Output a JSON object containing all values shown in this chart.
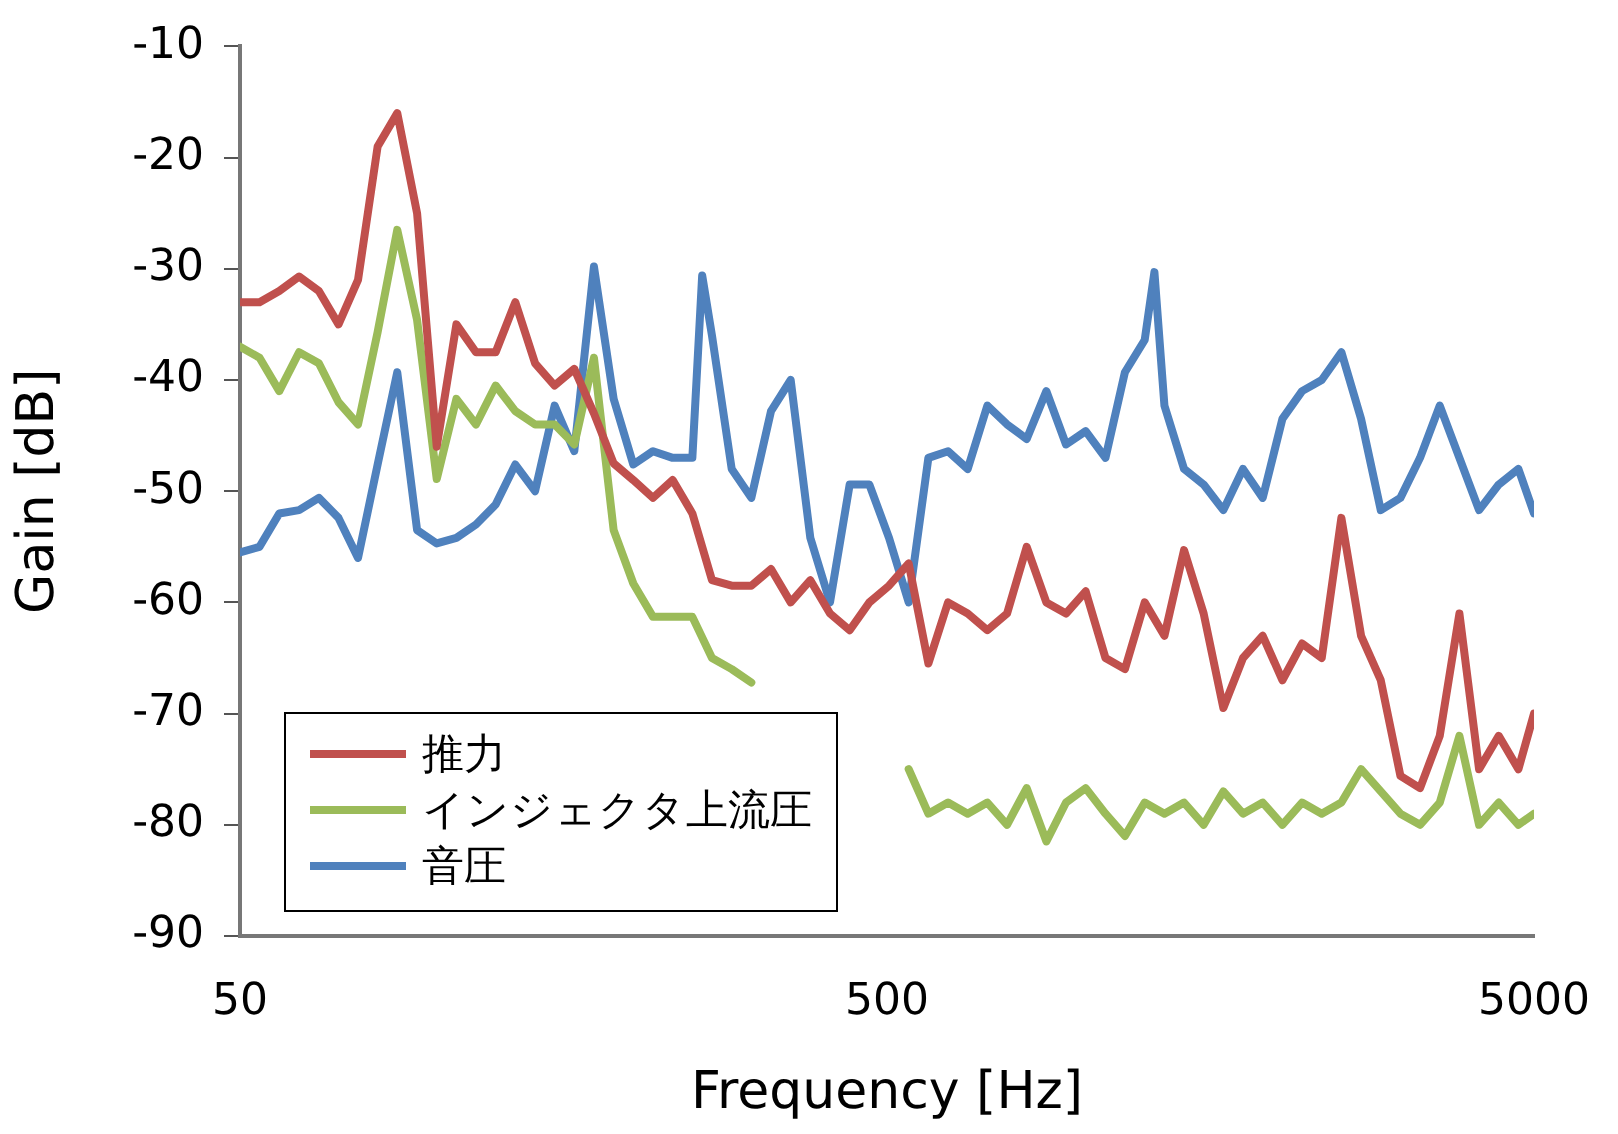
{
  "chart_data": {
    "type": "line",
    "xlabel": "Frequency [Hz]",
    "ylabel": "Gain [dB]",
    "log": "x",
    "xlim": [
      50,
      5000
    ],
    "xticks": [
      50,
      500,
      5000
    ],
    "ylim": [
      -90,
      -10
    ],
    "yticks": [
      -90,
      -80,
      -70,
      -60,
      -50,
      -40,
      -30,
      -20,
      -10
    ],
    "grid": false,
    "legend": "bottom left",
    "marker": "none",
    "line_style": "solid",
    "x": [
      50,
      53.6,
      57.5,
      61.7,
      66.2,
      71.0,
      76.1,
      81.6,
      87.5,
      93.9,
      100.7,
      108,
      115.8,
      124.2,
      133.2,
      142.9,
      153.2,
      164.3,
      176.2,
      189,
      202.7,
      217.4,
      233.2,
      250.1,
      268.2,
      287.7,
      308.5,
      330.9,
      354.9,
      380.6,
      408.2,
      437.8,
      469.6,
      503.6,
      540.1,
      579.3,
      621.3,
      666.3,
      714.6,
      766.5,
      822,
      881.6,
      945.5,
      1014,
      1088,
      1166,
      1251,
      1342,
      1439,
      1543,
      1655,
      1775,
      1904,
      2042,
      2190,
      2349,
      2519,
      2702,
      2898,
      3108,
      3333,
      3575,
      3834,
      4112,
      4410,
      4730,
      5000
    ],
    "series": [
      {
        "name": "推力",
        "color": "#c0504d",
        "values": [
          -33,
          -33,
          -32,
          -30.7,
          -32,
          -35,
          -31,
          -19,
          -16,
          -25,
          -46,
          -35,
          -37.5,
          -37.5,
          -33,
          -38.5,
          -40.5,
          -39,
          -43,
          -47.5,
          -49,
          -50.6,
          -49,
          -52,
          -58,
          -58.5,
          -58.5,
          -57,
          -60,
          -58,
          -61,
          -62.5,
          -60,
          -58.5,
          -56.5,
          -65.5,
          -60,
          -61,
          -62.5,
          -61,
          -55,
          -60,
          -61,
          -59,
          -65,
          -66,
          -60,
          -63,
          -55.3,
          -61,
          -69.5,
          -65,
          -63,
          -67,
          -63.7,
          -65,
          -52.4,
          -63,
          -67,
          -75.6,
          -76.7,
          -72,
          -61,
          -75,
          -72,
          -75,
          -70
        ]
      },
      {
        "name": "インジェクタ上流圧",
        "color": "#9bbb59",
        "values": [
          -37,
          -38,
          -41,
          -37.5,
          -38.5,
          -42,
          -44,
          -35.7,
          -26.5,
          -34.6,
          -48.9,
          -41.7,
          -44,
          -40.5,
          -42.8,
          -44,
          -44,
          -45.8,
          -38,
          -53.5,
          -58.3,
          -61.3,
          -61.3,
          -61.3,
          -65,
          -66,
          -67.2,
          null,
          null,
          null,
          null,
          null,
          null,
          null,
          -75,
          -79,
          -78,
          -79,
          -78,
          -80,
          -76.7,
          -81.5,
          -78,
          -76.7,
          -79,
          -81,
          -78,
          -79,
          -78,
          -80,
          -77,
          -79,
          -78,
          -80,
          -78,
          -79,
          -78,
          -75,
          -77,
          -79,
          -80,
          -78,
          -72,
          -80,
          -78,
          -80,
          -79
        ]
      },
      {
        "name": "音圧",
        "color": "#4f81bd",
        "x": [
          50,
          53.6,
          57.5,
          61.7,
          66.2,
          71.0,
          76.1,
          81.6,
          87.5,
          93.9,
          100.7,
          108,
          115.8,
          124.2,
          133.2,
          142.9,
          153.2,
          164.3,
          176.2,
          189,
          202.7,
          217.4,
          233.2,
          250.1,
          259,
          268.2,
          287.7,
          308.5,
          330.9,
          354.9,
          380.6,
          408.2,
          437.8,
          469.6,
          503.6,
          540.1,
          579.3,
          621.3,
          666.3,
          714.6,
          766.5,
          822,
          881.6,
          945.5,
          1014,
          1088,
          1166,
          1251,
          1295,
          1342,
          1439,
          1543,
          1655,
          1775,
          1904,
          2042,
          2190,
          2349,
          2519,
          2702,
          2898,
          3108,
          3333,
          3575,
          3834,
          4112,
          4410,
          4730,
          5000
        ],
        "values": [
          -55.5,
          -55,
          -52,
          -51.7,
          -50.6,
          -52.4,
          -56,
          -47.6,
          -39.3,
          -53.5,
          -54.7,
          -54.2,
          -53,
          -51.2,
          -47.6,
          -50,
          -42.3,
          -46.4,
          -29.8,
          -41.7,
          -47.6,
          -46.4,
          -47,
          -47,
          -30.6,
          -36,
          -48,
          -50.6,
          -42.8,
          -40,
          -54.2,
          -60,
          -49.4,
          -49.4,
          -54.2,
          -60,
          -47,
          -46.4,
          -48,
          -42.3,
          -44,
          -45.3,
          -41,
          -45.8,
          -44.6,
          -47,
          -39.3,
          -36.4,
          -30.3,
          -42.3,
          -48,
          -49.4,
          -51.7,
          -48,
          -50.6,
          -43.5,
          -41,
          -40,
          -37.5,
          -43.5,
          -51.7,
          -50.6,
          -47,
          -42.3,
          -47,
          -51.7,
          -49.4,
          -48,
          -52
        ]
      }
    ]
  }
}
